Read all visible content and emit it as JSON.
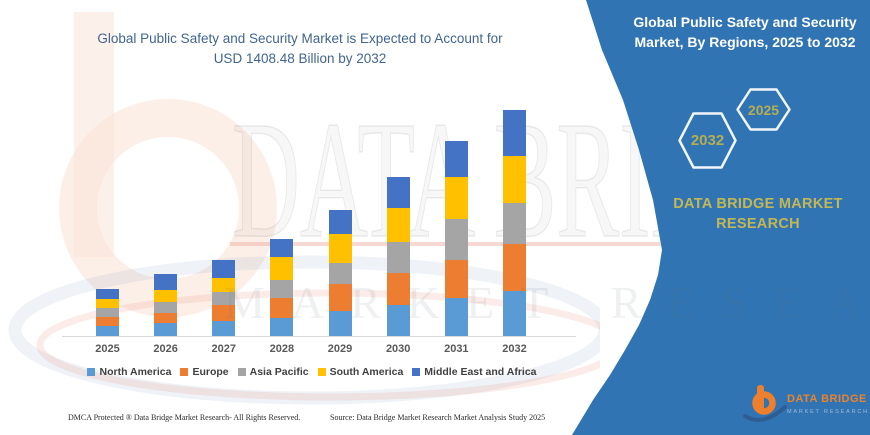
{
  "left": {
    "title_line1": "Global Public Safety and Security Market is Expected to Account for",
    "title_line2": "USD 1408.48 Billion by 2032",
    "footer_dmca": "DMCA Protected ® Data Bridge Market Research- All Rights Reserved.",
    "footer_source": "Source: Data Bridge Market Research Market Analysis Study 2025"
  },
  "right_panel": {
    "background_color": "#3174b3",
    "title_line1": "Global Public Safety and Security",
    "title_line2": "Market, By Regions, 2025 to 2032",
    "hexagon_left": "2032",
    "hexagon_right": "2025",
    "hexagon_text_color": "#b5ad52",
    "brand_line1": "DATA BRIDGE MARKET",
    "brand_line2": "RESEARCH",
    "brand_text_color": "#c3b755",
    "logo_name": "DATA BRIDGE",
    "logo_sub": "MARKET RESEARCH",
    "logo_orange": "#ee7f2d",
    "logo_blue": "#2e5d93"
  },
  "watermark": {
    "big_text": "DATA BRIDGE",
    "letters_text": "MARKET RESEARCH"
  },
  "chart_data": {
    "type": "bar",
    "stacked": true,
    "title": "Global Public Safety and Security Market is Expected to Account for USD 1408.48 Billion by 2032",
    "unit": "USD Billion",
    "categories": [
      "2025",
      "2026",
      "2027",
      "2028",
      "2029",
      "2030",
      "2031",
      "2032"
    ],
    "series": [
      {
        "name": "North America",
        "color": "#5B9BD5",
        "values": [
          62,
          81,
          93,
          112,
          155,
          192,
          236,
          279
        ]
      },
      {
        "name": "Europe",
        "color": "#ED7D31",
        "values": [
          56,
          62,
          99,
          124,
          167,
          198,
          236,
          291
        ]
      },
      {
        "name": "Asia Pacific",
        "color": "#A5A5A5",
        "values": [
          56,
          68,
          81,
          112,
          130,
          192,
          254,
          260
        ]
      },
      {
        "name": "South America",
        "color": "#FFC000",
        "values": [
          56,
          74,
          87,
          143,
          180,
          217,
          260,
          291
        ]
      },
      {
        "name": "Middle East and Africa",
        "color": "#4472C4",
        "values": [
          62,
          99,
          112,
          112,
          149,
          192,
          223,
          287.48
        ]
      }
    ],
    "totals_estimated": [
      292,
      384,
      472,
      603,
      781,
      991,
      1209,
      1408.48
    ],
    "ylim": [
      0,
      1430
    ],
    "grid": false,
    "legend_position": "bottom",
    "xlabel": "",
    "ylabel": ""
  }
}
